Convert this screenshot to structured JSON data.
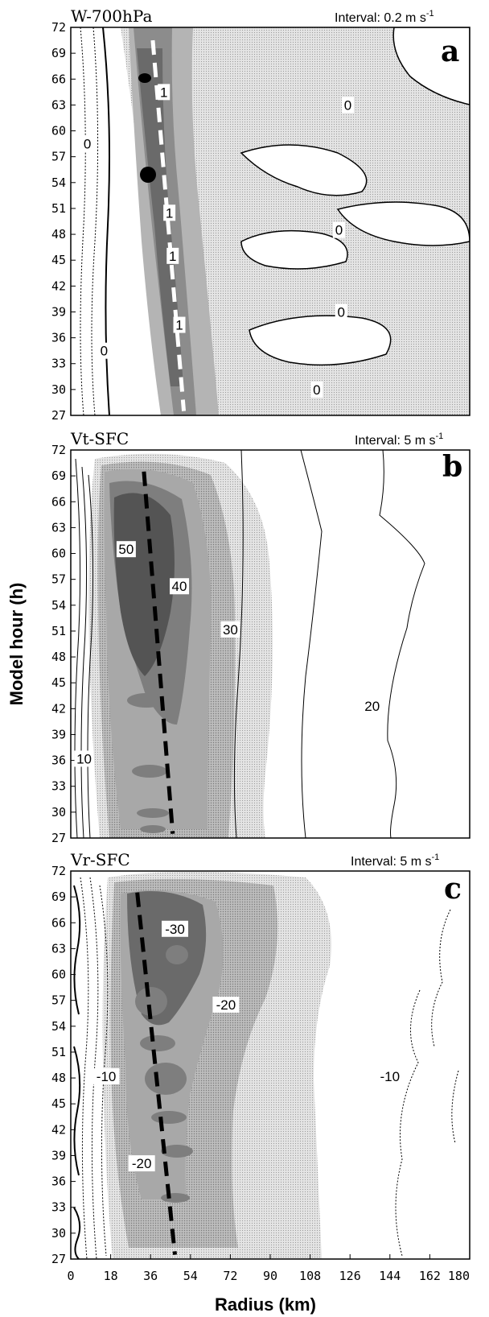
{
  "chart_data": [
    {
      "type": "heatmap",
      "panel_letter": "a",
      "title": "W-700hPa",
      "interval_text": "Interval: 0.2 m s",
      "interval_exp": "-1",
      "ylim": [
        27,
        72
      ],
      "xlim": [
        0,
        180
      ],
      "yticks": [
        "72",
        "69",
        "66",
        "63",
        "60",
        "57",
        "54",
        "51",
        "48",
        "45",
        "42",
        "39",
        "36",
        "33",
        "30",
        "27"
      ],
      "contour_labels": [
        {
          "text": "1",
          "x": 42,
          "y": 64.5
        },
        {
          "text": "1",
          "x": 44.5,
          "y": 50.5
        },
        {
          "text": "1",
          "x": 46,
          "y": 45.5
        },
        {
          "text": "1",
          "x": 49,
          "y": 37.5
        },
        {
          "text": "0",
          "x": 7.5,
          "y": 58.5
        },
        {
          "text": "0",
          "x": 15,
          "y": 34.5
        },
        {
          "text": "0",
          "x": 125,
          "y": 63
        },
        {
          "text": "0",
          "x": 121,
          "y": 48.5
        },
        {
          "text": "0",
          "x": 122,
          "y": 39
        },
        {
          "text": "0",
          "x": 111,
          "y": 30
        }
      ],
      "rmw_line": {
        "x": [
          37,
          51
        ],
        "y": [
          70.5,
          27.5
        ]
      }
    },
    {
      "type": "heatmap",
      "panel_letter": "b",
      "title": "Vt-SFC",
      "interval_text": "Interval: 5 m s",
      "interval_exp": "-1",
      "ylim": [
        27,
        72
      ],
      "xlim": [
        0,
        180
      ],
      "yticks": [
        "72",
        "69",
        "66",
        "63",
        "60",
        "57",
        "54",
        "51",
        "48",
        "45",
        "42",
        "39",
        "36",
        "33",
        "30",
        "27"
      ],
      "contour_labels": [
        {
          "text": "50",
          "x": 25,
          "y": 60.5
        },
        {
          "text": "40",
          "x": 49,
          "y": 56.2
        },
        {
          "text": "30",
          "x": 72,
          "y": 51.2
        },
        {
          "text": "20",
          "x": 136,
          "y": 42.3
        },
        {
          "text": "10",
          "x": 6,
          "y": 36.2
        }
      ],
      "rmw_line": {
        "x": [
          33,
          46
        ],
        "y": [
          69.5,
          27.5
        ]
      }
    },
    {
      "type": "heatmap",
      "panel_letter": "c",
      "title": "Vr-SFC",
      "interval_text": "Interval: 5 m s",
      "interval_exp": "-1",
      "ylim": [
        27,
        72
      ],
      "xlim": [
        0,
        180
      ],
      "yticks": [
        "72",
        "69",
        "66",
        "63",
        "60",
        "57",
        "54",
        "51",
        "48",
        "45",
        "42",
        "39",
        "36",
        "33",
        "30",
        "27"
      ],
      "xticks": [
        "0",
        "18",
        "36",
        "54",
        "72",
        "90",
        "108",
        "126",
        "144",
        "162",
        "180"
      ],
      "contour_labels": [
        {
          "text": "-30",
          "x": 47,
          "y": 65.3
        },
        {
          "text": "-20",
          "x": 70,
          "y": 56.5
        },
        {
          "text": "-10",
          "x": 16,
          "y": 48.2
        },
        {
          "text": "-10",
          "x": 144,
          "y": 48.2
        },
        {
          "text": "-20",
          "x": 32,
          "y": 38.1
        }
      ],
      "rmw_line": {
        "x": [
          30,
          47
        ],
        "y": [
          69.5,
          27.5
        ]
      }
    }
  ],
  "axes": {
    "ylabel": "Model hour (h)",
    "xlabel": "Radius (km)"
  }
}
